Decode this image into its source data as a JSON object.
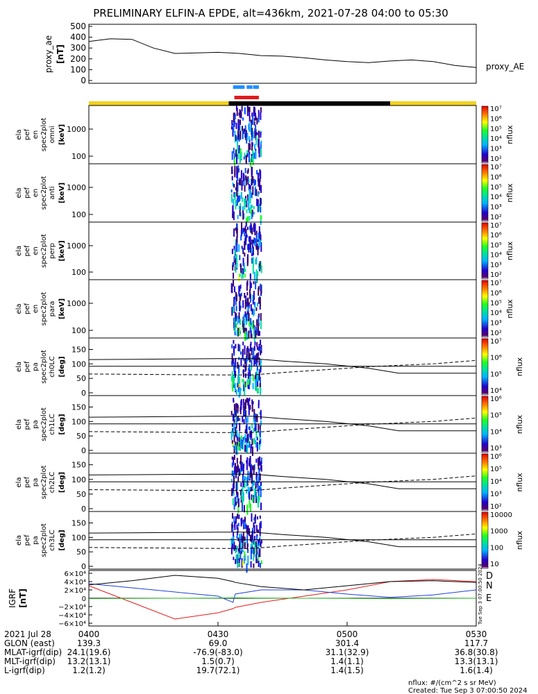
{
  "title": "PRELIMINARY ELFIN-A EPDE, alt=436km, 2021-07-28 04:00 to 05:30",
  "chart_data": [
    {
      "type": "line",
      "panel": "proxy_ae",
      "ylabel_lines": [
        "proxy_ae",
        "[nT]"
      ],
      "series_label": "proxy_AE",
      "yticks": [
        "500",
        "400",
        "300",
        "200",
        "100",
        "0"
      ],
      "ylim": [
        0,
        500
      ],
      "x_minutes": [
        0,
        5,
        10,
        15,
        20,
        25,
        30,
        35,
        40,
        45,
        50,
        55,
        60,
        65,
        70,
        75,
        80,
        85,
        90
      ],
      "values": [
        360,
        385,
        380,
        300,
        250,
        255,
        260,
        250,
        230,
        225,
        210,
        190,
        175,
        165,
        180,
        190,
        175,
        140,
        120
      ],
      "status_bars": [
        {
          "color": "#1e90ff",
          "start_min": 33.5,
          "end_min": 39.5,
          "dashed": true
        },
        {
          "color": "#e41a1c",
          "start_min": 33.8,
          "end_min": 39.5,
          "dashed": false
        }
      ],
      "orbit_bar": [
        {
          "color": "#f2d21b",
          "start_min": 0,
          "end_min": 32.5
        },
        {
          "color": "#000000",
          "start_min": 32.5,
          "end_min": 70
        },
        {
          "color": "#f2d21b",
          "start_min": 70,
          "end_min": 90
        }
      ]
    },
    {
      "type": "heatmap",
      "panel": "energy spectra",
      "xlim_minutes": [
        0,
        90
      ],
      "active_range_minutes": [
        33,
        40
      ],
      "ylabel_units": "[keV]",
      "ylabel_common": [
        "ela",
        "pef",
        "en",
        "spec2plot"
      ],
      "subpanels": [
        {
          "name": "omni",
          "yticks": [
            "1000",
            "100"
          ]
        },
        {
          "name": "anti",
          "yticks": [
            "1000",
            "100"
          ]
        },
        {
          "name": "perp",
          "yticks": [
            "1000",
            "100"
          ]
        },
        {
          "name": "para",
          "yticks": [
            "1000",
            "100"
          ]
        }
      ],
      "colorbar_label": "nflux",
      "colorbar_ticks": [
        "10⁷",
        "10⁶",
        "10⁵",
        "10⁴",
        "10³",
        "10²"
      ]
    },
    {
      "type": "heatmap",
      "panel": "pitch-angle spectra",
      "ylabel_units": "[deg]",
      "ylabel_common": [
        "ela",
        "pef",
        "pa",
        "spec2plot"
      ],
      "yticks": [
        "150",
        "100",
        "50",
        "0"
      ],
      "ylim": [
        0,
        180
      ],
      "subpanels": [
        {
          "name": "ch0LC",
          "cbar_ticks": [
            "10⁷",
            "10⁶",
            "10⁵",
            "10⁴"
          ]
        },
        {
          "name": "ch1LC",
          "cbar_ticks": [
            "10⁶",
            "10⁵",
            "10⁴",
            "10³"
          ]
        },
        {
          "name": "ch2LC",
          "cbar_ticks": [
            "10⁶",
            "10⁵",
            "10⁴",
            "10³",
            "10²"
          ]
        },
        {
          "name": "ch3LC",
          "cbar_ticks": [
            "10000",
            "1000",
            "100",
            "10"
          ]
        }
      ],
      "colorbar_label": "nflux",
      "reference_lines": {
        "x_minutes": [
          0,
          10,
          20,
          30,
          38,
          45,
          55,
          65,
          72,
          80,
          90
        ],
        "upper_solid": [
          115,
          116,
          117,
          118,
          118,
          110,
          100,
          85,
          68,
          68,
          68
        ],
        "lower_solid": [
          92,
          92,
          92,
          92,
          92,
          92,
          92,
          92,
          92,
          92,
          92
        ],
        "dashed": [
          65,
          64,
          63,
          62,
          62,
          70,
          80,
          90,
          95,
          100,
          112
        ]
      }
    },
    {
      "type": "line",
      "panel": "IGRF",
      "ylabel_lines": [
        "IGRF",
        "[nT]"
      ],
      "yticks": [
        "6×10⁴",
        "4×10⁴",
        "2×10⁴",
        "0",
        "−2×10⁴",
        "−4×10⁴",
        "−6×10⁴"
      ],
      "ylim": [
        -60000,
        60000
      ],
      "x_minutes": [
        0,
        10,
        20,
        30,
        33.5,
        34,
        40,
        50,
        60,
        70,
        80,
        90
      ],
      "series": [
        {
          "name": "D",
          "color": "#e41a1c",
          "values": [
            30000,
            -10000,
            -50000,
            -35000,
            -25000,
            -22000,
            -10000,
            5000,
            20000,
            40000,
            45000,
            40000
          ]
        },
        {
          "name": "N",
          "color": "#1f3fd8",
          "values": [
            35000,
            25000,
            15000,
            5000,
            -10000,
            10000,
            20000,
            20000,
            10000,
            2000,
            8000,
            20000
          ]
        },
        {
          "name": "E",
          "color": "#22c022",
          "values": [
            -1000,
            -500,
            0,
            500,
            1000,
            1000,
            500,
            0,
            -500,
            -1000,
            -500,
            0
          ]
        },
        {
          "name": "black",
          "color": "#000000",
          "values": [
            32000,
            42000,
            55000,
            48000,
            40000,
            38000,
            28000,
            20000,
            30000,
            40000,
            42000,
            38000
          ]
        }
      ],
      "timestamp_right": "Tue Sep 3 07:00:50 2024"
    }
  ],
  "xaxis": {
    "labels": [
      "0400",
      "0430",
      "0500",
      "0530"
    ],
    "label_minutes": [
      0,
      30,
      60,
      90
    ]
  },
  "table": {
    "rows": [
      {
        "label": "2021 Jul 28",
        "values": [
          "0400",
          "0430",
          "0500",
          "0530"
        ]
      },
      {
        "label": "GLON (east)",
        "values": [
          "139.3",
          "69.0",
          "301.4",
          "117.7"
        ]
      },
      {
        "label": "MLAT-igrf(dip)",
        "values": [
          "24.1(19.6)",
          "-76.9(-83.0)",
          "31.1(32.9)",
          "36.8(30.8)"
        ]
      },
      {
        "label": "MLT-igrf(dip)",
        "values": [
          "13.2(13.1)",
          "1.5(0.7)",
          "1.4(1.1)",
          "13.3(13.1)"
        ]
      },
      {
        "label": "L-igrf(dip)",
        "values": [
          "1.2(1.2)",
          "19.7(72.1)",
          "1.4(1.5)",
          "1.6(1.4)"
        ]
      }
    ]
  },
  "footer": {
    "units": "nflux: #/(cm^2 s sr MeV)",
    "created": "Created: Tue Sep  3 07:00:50 2024"
  }
}
